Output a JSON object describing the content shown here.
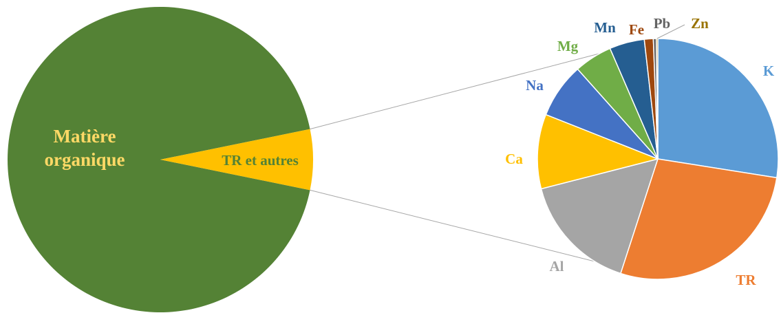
{
  "chart_data": {
    "type": "pie",
    "subtype": "pie-of-pie",
    "main": {
      "slices": [
        {
          "label": "Matière organique",
          "value": 93.6,
          "color": "#548235",
          "label_color": "#FFD966"
        },
        {
          "label": "TR et autres",
          "value": 6.4,
          "color": "#FFC000",
          "label_color": "#548235"
        }
      ]
    },
    "secondary": {
      "source_slice": "TR et autres",
      "slices": [
        {
          "label": "K",
          "value": 27.5,
          "color": "#5B9BD5",
          "label_color": "#5B9BD5"
        },
        {
          "label": "TR",
          "value": 27.5,
          "color": "#ED7D31",
          "label_color": "#ED7D31"
        },
        {
          "label": "Al",
          "value": 16.0,
          "color": "#A5A5A5",
          "label_color": "#A5A5A5"
        },
        {
          "label": "Ca",
          "value": 10.0,
          "color": "#FFC000",
          "label_color": "#FFC000"
        },
        {
          "label": "Na",
          "value": 7.4,
          "color": "#4472C4",
          "label_color": "#4472C4"
        },
        {
          "label": "Mg",
          "value": 5.1,
          "color": "#70AD47",
          "label_color": "#70AD47"
        },
        {
          "label": "Mn",
          "value": 4.7,
          "color": "#255E91",
          "label_color": "#255E91"
        },
        {
          "label": "Fe",
          "value": 1.2,
          "color": "#9E480E",
          "label_color": "#9E480E"
        },
        {
          "label": "Pb",
          "value": 0.4,
          "color": "#636363",
          "label_color": "#636363"
        },
        {
          "label": "Zn",
          "value": 0.2,
          "color": "#997300",
          "label_color": "#997300"
        }
      ]
    },
    "connector_color": "#A6A6A6"
  }
}
